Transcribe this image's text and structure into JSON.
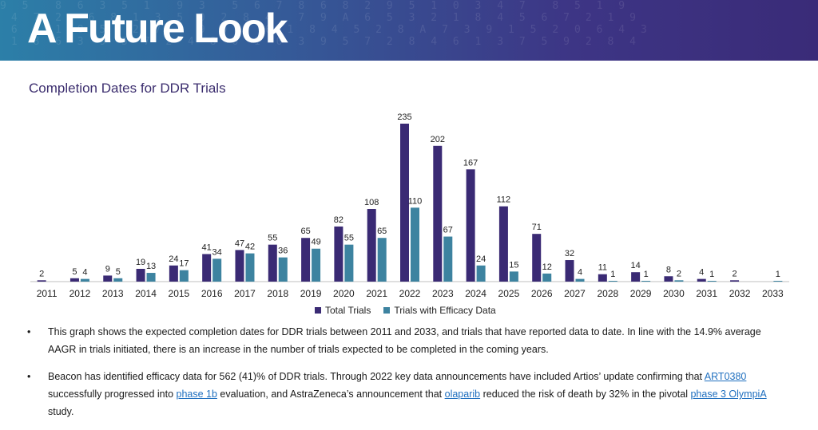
{
  "header": {
    "title": "A Future Look",
    "background_colors": [
      "#2c7fa8",
      "#3a2b78"
    ]
  },
  "chart_title": "Completion Dates for DDR Trials",
  "chart_data": {
    "type": "bar",
    "title": "Completion Dates for DDR Trials",
    "xlabel": "",
    "ylabel": "",
    "categories": [
      "2011",
      "2012",
      "2013",
      "2014",
      "2015",
      "2016",
      "2017",
      "2018",
      "2019",
      "2020",
      "2021",
      "2022",
      "2023",
      "2024",
      "2025",
      "2026",
      "2027",
      "2028",
      "2029",
      "2030",
      "2031",
      "2032",
      "2033"
    ],
    "series": [
      {
        "name": "Total Trials",
        "color": "#3a2a74",
        "values": [
          2,
          5,
          9,
          19,
          24,
          41,
          47,
          55,
          65,
          82,
          108,
          235,
          202,
          167,
          112,
          71,
          32,
          11,
          14,
          8,
          4,
          2,
          null
        ]
      },
      {
        "name": "Trials with Efficacy Data",
        "color": "#3d83a0",
        "values": [
          null,
          4,
          5,
          13,
          17,
          34,
          42,
          36,
          49,
          55,
          65,
          110,
          67,
          24,
          15,
          12,
          4,
          1,
          1,
          2,
          1,
          null,
          1
        ]
      }
    ],
    "ylim": [
      0,
      235
    ],
    "grid": false,
    "legend_position": "bottom"
  },
  "bullets": [
    {
      "text": "This graph shows the expected completion dates for DDR trials between 2011 and 2033, and trials that have reported data to date. In line with the 14.9% average AAGR in trials initiated, there is an increase in the number of trials expected to be completed in the coming years."
    },
    {
      "t1": "Beacon has identified efficacy data for 562 (41)% of DDR trials. Through 2022 key data announcements have included Artios’ update confirming that ",
      "l1": "ART0380",
      "t2": " successfully progressed into ",
      "l2": "phase 1b",
      "t3": " evaluation, and AstraZeneca’s announcement that ",
      "l3": "olaparib",
      "t4": " reduced the risk of death by 32% in the pivotal ",
      "l4": "phase 3 OlympiA ",
      "t5": "study."
    }
  ]
}
